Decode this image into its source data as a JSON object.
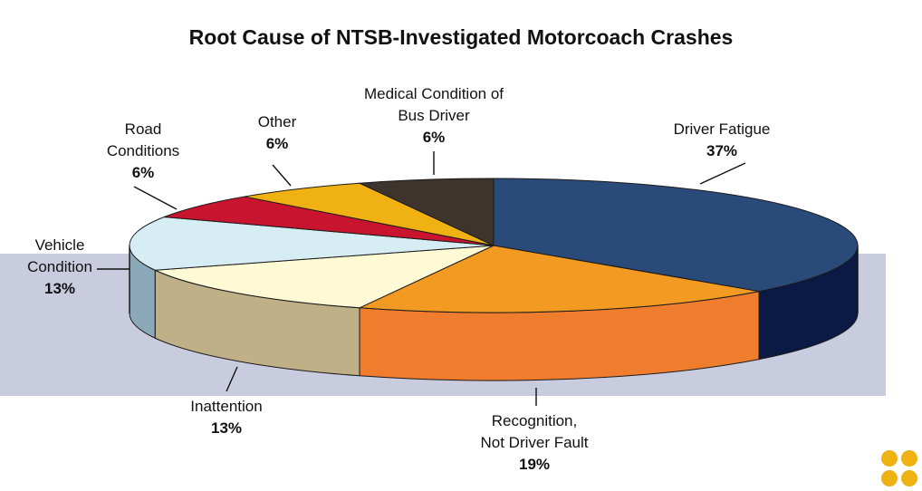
{
  "chart_data": {
    "type": "pie",
    "title": "Root Cause of NTSB-Investigated Motorcoach Crashes",
    "unit": "%",
    "slices": [
      {
        "name": "Driver Fatigue",
        "label_lines": [
          "Driver Fatigue"
        ],
        "value": 37,
        "value_label": "37%",
        "top_color": "#2a4a7a",
        "side_color": "#0a1a45"
      },
      {
        "name": "Recognition, Not Driver Fault",
        "label_lines": [
          "Recognition,",
          "Not Driver Fault"
        ],
        "value": 19,
        "value_label": "19%",
        "top_color": "#f39a22",
        "side_color": "#f07c2e"
      },
      {
        "name": "Inattention",
        "label_lines": [
          "Inattention"
        ],
        "value": 13,
        "value_label": "13%",
        "top_color": "#fffad6",
        "side_color": "#c0b088"
      },
      {
        "name": "Vehicle Condition",
        "label_lines": [
          "Vehicle",
          "Condition"
        ],
        "value": 13,
        "value_label": "13%",
        "top_color": "#d6edf4",
        "side_color": "#8ba9b8"
      },
      {
        "name": "Road Conditions",
        "label_lines": [
          "Road",
          "Conditions"
        ],
        "value": 6,
        "value_label": "6%",
        "top_color": "#c8142e",
        "side_color": "#8a0a1e"
      },
      {
        "name": "Other",
        "label_lines": [
          "Other"
        ],
        "value": 6,
        "value_label": "6%",
        "top_color": "#f0b113",
        "side_color": "#b88208"
      },
      {
        "name": "Medical Condition of Bus Driver",
        "label_lines": [
          "Medical Condition of",
          "Bus Driver"
        ],
        "value": 6,
        "value_label": "6%",
        "top_color": "#3e342e",
        "side_color": "#231d19"
      }
    ],
    "background_band_color": "#c9cbde",
    "logo_color": "#f0b113"
  }
}
